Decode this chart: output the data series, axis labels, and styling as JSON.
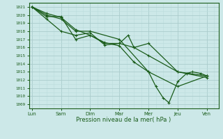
{
  "xlabel": "Pression niveau de la mer( hPa )",
  "background_color": "#cce8e8",
  "grid_major_color": "#aacccc",
  "grid_minor_color": "#bbdddd",
  "line_color": "#1a5c1a",
  "ylim": [
    1008.5,
    1021.5
  ],
  "yticks": [
    1009,
    1010,
    1011,
    1012,
    1013,
    1014,
    1015,
    1016,
    1017,
    1018,
    1019,
    1020,
    1021
  ],
  "x_labels": [
    "Lun",
    "Sam",
    "Dim",
    "Mar",
    "Mer",
    "Jeu",
    "Ven"
  ],
  "x_positions": [
    0,
    1,
    2,
    3,
    4,
    5,
    6
  ],
  "series1_x": [
    0,
    0.5,
    1.0,
    1.5,
    2.0,
    3.0,
    4.0,
    5.0,
    6.0
  ],
  "series1_y": [
    1021.0,
    1020.0,
    1019.5,
    1018.0,
    1018.0,
    1017.0,
    1013.0,
    1011.2,
    1012.5
  ],
  "series2_x": [
    0,
    0.5,
    1.0,
    1.5,
    2.0,
    2.5,
    3.0,
    3.5,
    4.0,
    5.0,
    6.0
  ],
  "series2_y": [
    1021.0,
    1019.8,
    1019.8,
    1017.0,
    1017.5,
    1016.5,
    1016.5,
    1016.0,
    1016.5,
    1013.0,
    1012.5
  ],
  "series3_x": [
    0,
    0.5,
    1.0,
    1.5,
    2.0,
    2.5,
    3.0,
    3.3,
    3.5,
    4.0,
    5.0,
    6.0
  ],
  "series3_y": [
    1021.0,
    1019.5,
    1018.0,
    1017.5,
    1017.8,
    1016.3,
    1016.5,
    1017.5,
    1016.0,
    1015.0,
    1013.0,
    1012.3
  ],
  "series4_x": [
    0,
    0.5,
    1.0,
    1.5,
    2.0,
    2.5,
    3.0,
    3.5,
    4.0,
    4.25,
    4.5,
    4.7,
    5.0,
    5.3,
    5.5,
    5.8,
    6.0
  ],
  "series4_y": [
    1021.0,
    1020.2,
    1019.7,
    1018.2,
    1017.5,
    1016.6,
    1016.2,
    1014.2,
    1013.0,
    1011.2,
    1009.8,
    1009.2,
    1011.8,
    1012.8,
    1013.0,
    1012.8,
    1012.5
  ]
}
